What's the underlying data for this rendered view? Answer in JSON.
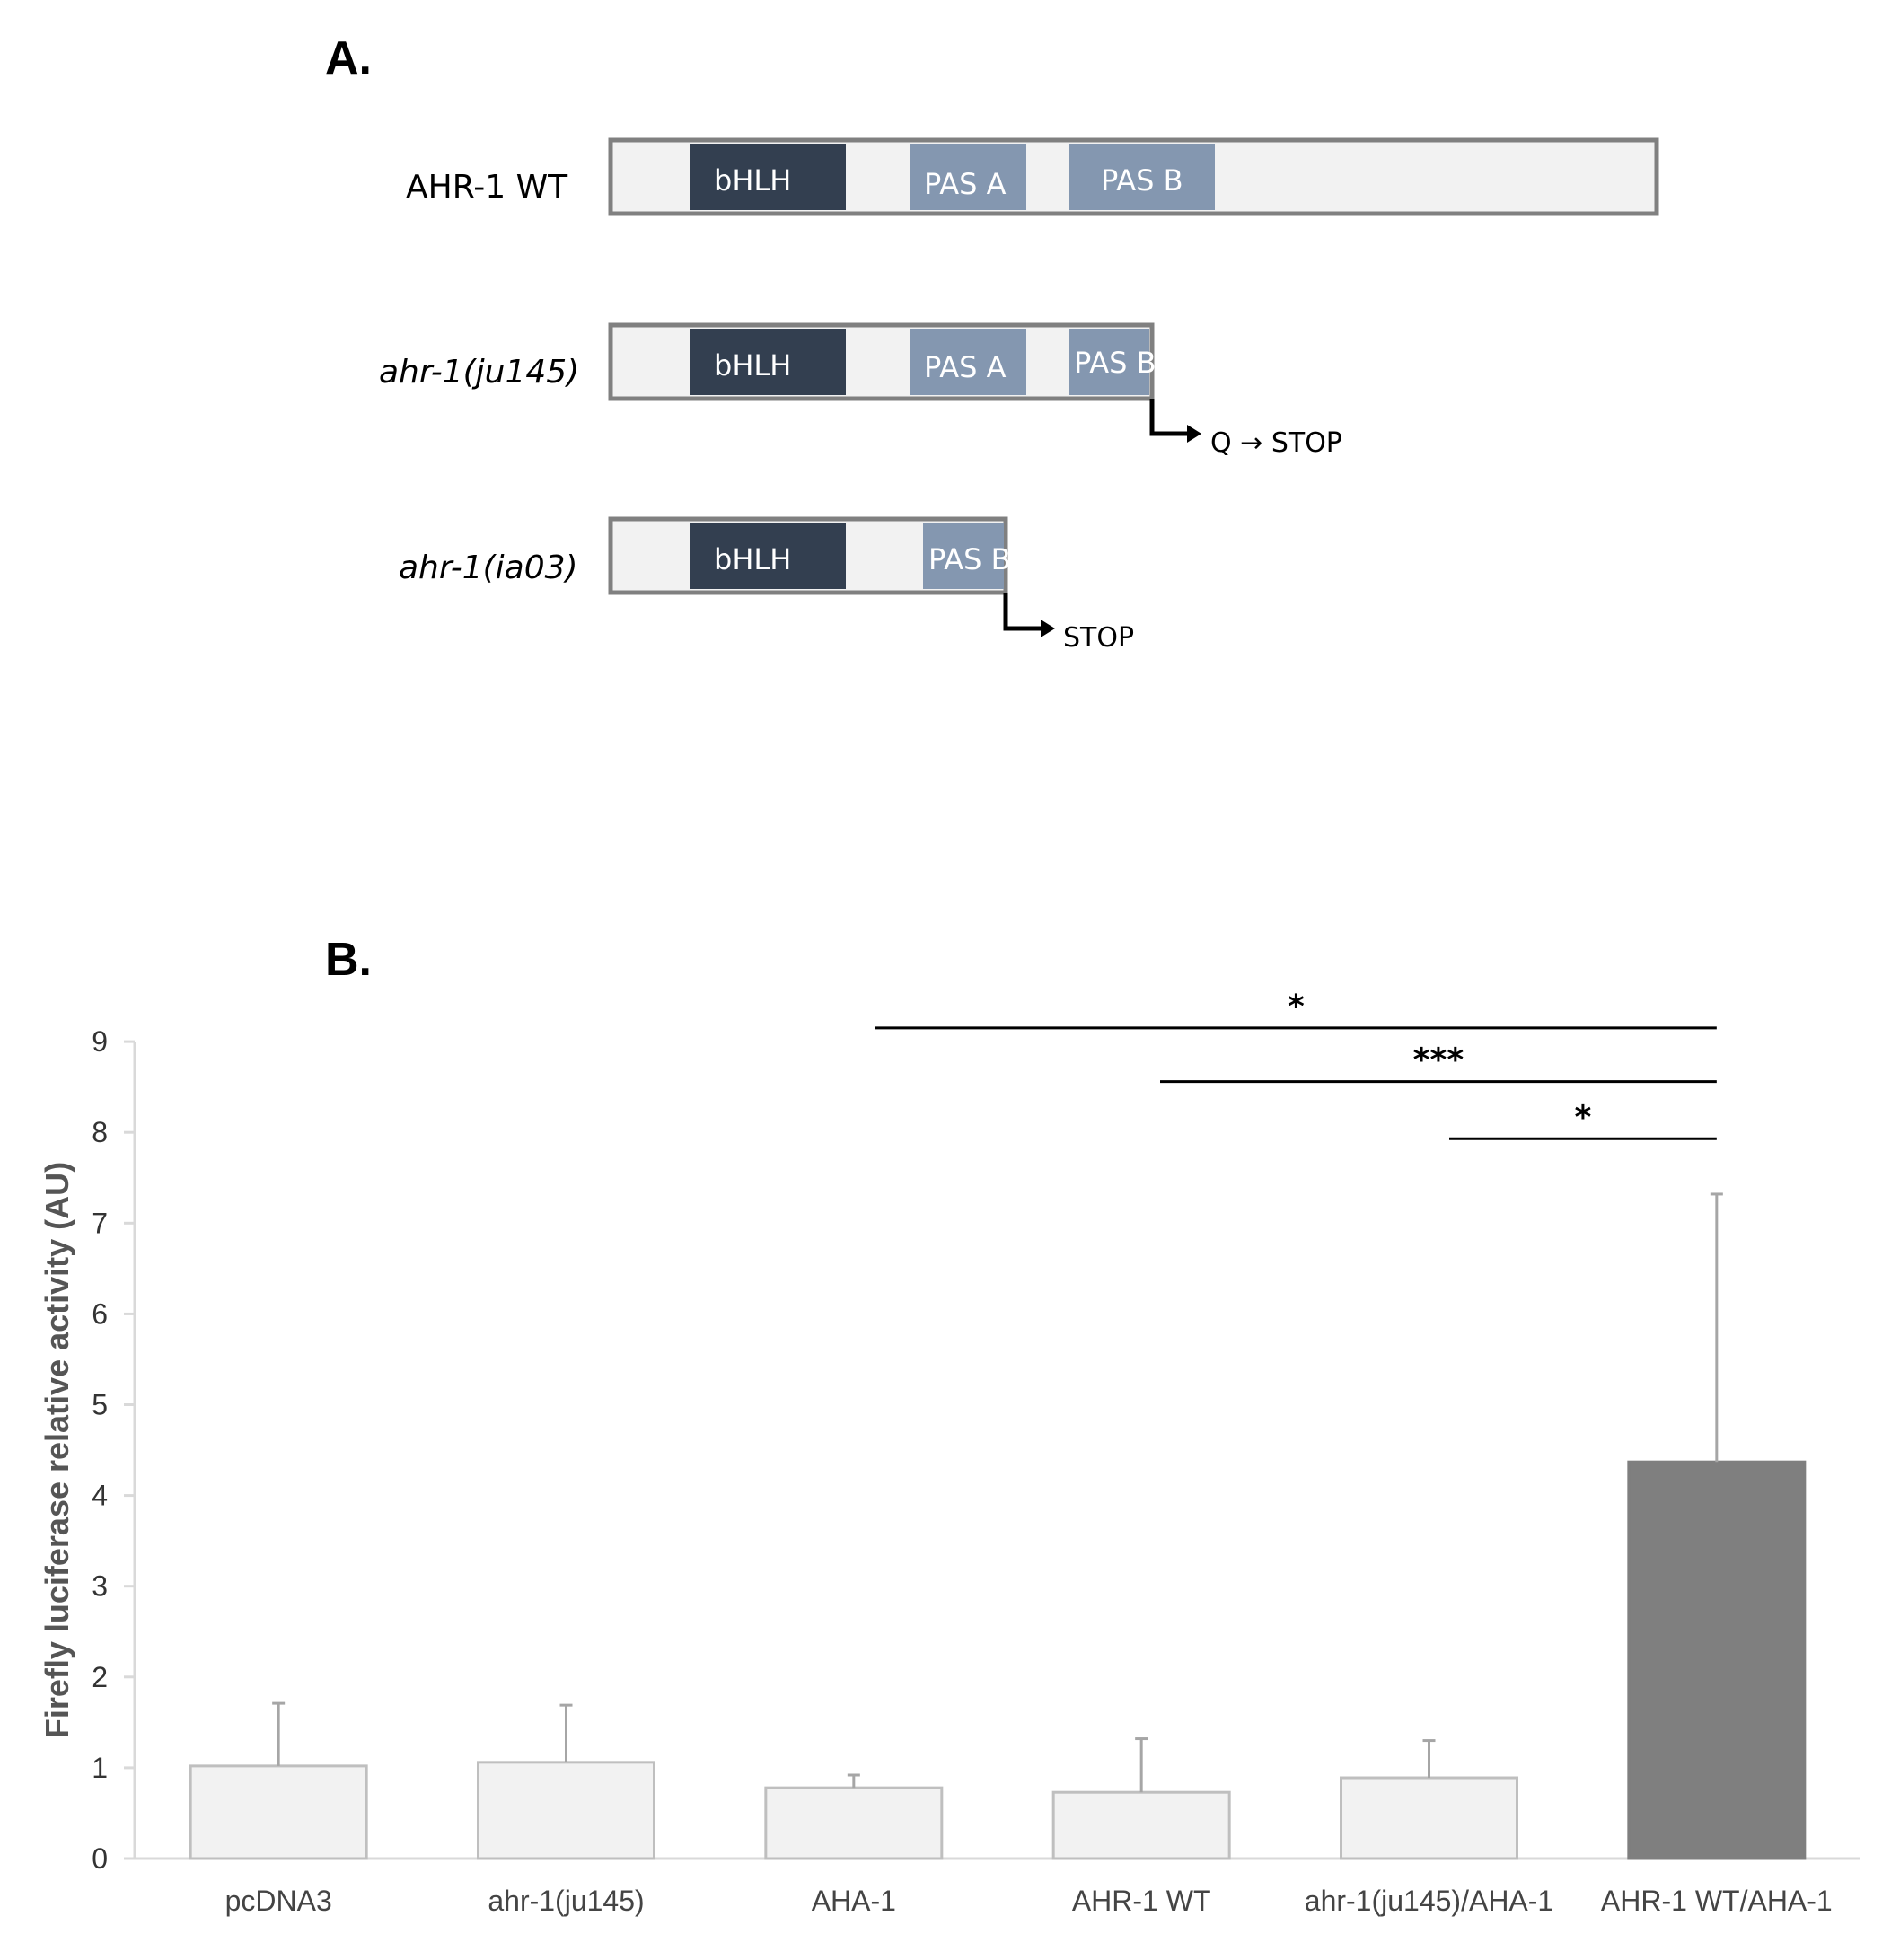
{
  "panel_a": {
    "label": "A.",
    "constructs": [
      {
        "name": "AHR-1 WT",
        "italic": false,
        "domains": [
          "bHLH",
          "PAS A",
          "PAS B"
        ],
        "stop": null
      },
      {
        "name": "ahr-1(ju145)",
        "italic": true,
        "domains": [
          "bHLH",
          "PAS A",
          "PAS B"
        ],
        "stop": "Q → STOP"
      },
      {
        "name": "ahr-1(ia03)",
        "italic": true,
        "domains": [
          "bHLH",
          "PAS B"
        ],
        "stop": "STOP"
      }
    ],
    "colors": {
      "frame": "#808080",
      "backbone": "#f2f2f2",
      "bHLH": "#333f50",
      "PAS": "#8497b0"
    }
  },
  "panel_b": {
    "label": "B."
  },
  "chart_data": {
    "type": "bar",
    "title": "",
    "xlabel": "",
    "ylabel": "Firefly luciferase relative activity (AU)",
    "ylim": [
      0,
      9
    ],
    "yticks": [
      "0",
      "1",
      "2",
      "3",
      "4",
      "5",
      "6",
      "7",
      "8",
      "9"
    ],
    "categories": [
      "pcDNA3",
      "ahr-1(ju145)",
      "AHA-1",
      "AHR-1 WT",
      "ahr-1(ju145)/AHA-1",
      "AHR-1 WT/AHA-1"
    ],
    "values": [
      1.02,
      1.06,
      0.78,
      0.73,
      0.89,
      4.37
    ],
    "error": [
      0.69,
      0.63,
      0.14,
      0.59,
      0.41,
      2.95
    ],
    "bar_colors": [
      "#f2f2f2",
      "#f2f2f2",
      "#f2f2f2",
      "#f2f2f2",
      "#f2f2f2",
      "#7f7f7f"
    ],
    "grid": false,
    "significance": [
      {
        "from": 2,
        "to": 5,
        "label": "*",
        "y": 9.15
      },
      {
        "from": 3,
        "to": 5,
        "label": "***",
        "y": 8.56
      },
      {
        "from": 4,
        "to": 5,
        "label": "*",
        "y": 7.93
      }
    ]
  }
}
